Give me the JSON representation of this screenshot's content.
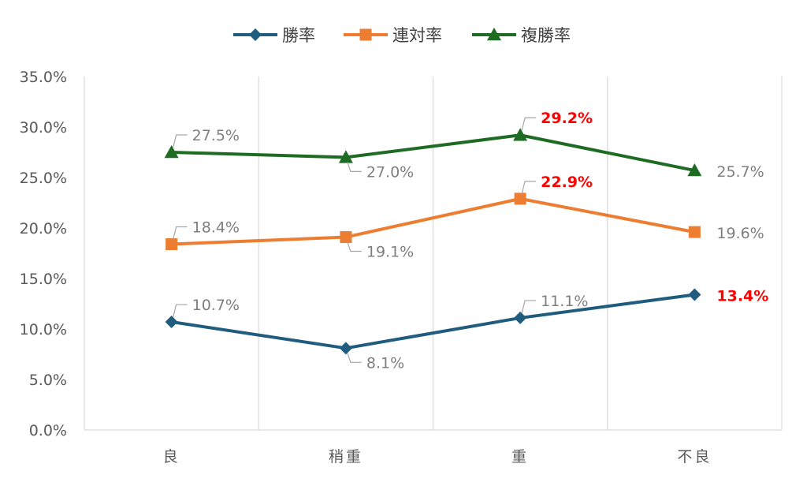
{
  "chart_data": {
    "type": "line",
    "categories": [
      "良",
      "稍重",
      "重",
      "不良"
    ],
    "ylim": [
      0,
      35
    ],
    "y_ticks": [
      "0.0%",
      "5.0%",
      "10.0%",
      "15.0%",
      "20.0%",
      "25.0%",
      "30.0%",
      "35.0%"
    ],
    "y_tick_values": [
      0,
      5,
      10,
      15,
      20,
      25,
      30,
      35
    ],
    "grid": "vertical",
    "legend": "top",
    "series": [
      {
        "name": "勝率",
        "marker": "diamond",
        "color": "#1f5c7e",
        "values": [
          10.7,
          8.1,
          11.1,
          13.4
        ],
        "labels": [
          "10.7%",
          "8.1%",
          "11.1%",
          "13.4%"
        ],
        "highlight": [
          false,
          false,
          false,
          true
        ]
      },
      {
        "name": "連対率",
        "marker": "square",
        "color": "#ed7d31",
        "values": [
          18.4,
          19.1,
          22.9,
          19.6
        ],
        "labels": [
          "18.4%",
          "19.1%",
          "22.9%",
          "19.6%"
        ],
        "highlight": [
          false,
          false,
          true,
          false
        ]
      },
      {
        "name": "複勝率",
        "marker": "triangle",
        "color": "#1e6b23",
        "values": [
          27.5,
          27.0,
          29.2,
          25.7
        ],
        "labels": [
          "27.5%",
          "27.0%",
          "29.2%",
          "25.7%"
        ],
        "highlight": [
          false,
          false,
          true,
          false
        ]
      }
    ],
    "label_color": "#7f7f7f",
    "highlight_color": "#ff0000"
  }
}
